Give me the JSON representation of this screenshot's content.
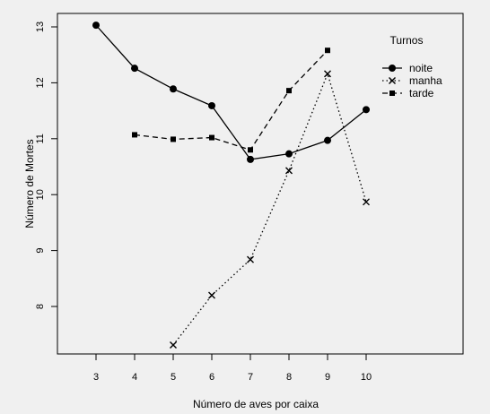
{
  "chart_data": {
    "type": "line",
    "xlabel": "Número de aves por caixa",
    "ylabel": "Número de Mortes",
    "xlim": [
      2.9,
      10.1
    ],
    "ylim": [
      7.2,
      13.1
    ],
    "x_ticks": [
      3,
      4,
      5,
      6,
      7,
      8,
      9,
      10
    ],
    "y_ticks": [
      8,
      9,
      10,
      11,
      12,
      13
    ],
    "legend": {
      "title": "Turnos",
      "position": "top-right"
    },
    "series": [
      {
        "name": "noite",
        "line": "solid",
        "marker": "circle",
        "x": [
          3,
          4,
          5,
          6,
          7,
          8,
          9,
          10
        ],
        "y": [
          13.03,
          12.26,
          11.89,
          11.59,
          10.63,
          10.73,
          10.97,
          11.52
        ]
      },
      {
        "name": "manha",
        "line": "dotted",
        "marker": "cross",
        "x": [
          5,
          6,
          7,
          8,
          9,
          10
        ],
        "y": [
          7.31,
          8.2,
          8.84,
          10.43,
          12.16,
          9.87
        ]
      },
      {
        "name": "tarde",
        "line": "dashed",
        "marker": "square",
        "x": [
          4,
          5,
          6,
          7,
          8,
          9
        ],
        "y": [
          11.07,
          10.99,
          11.02,
          10.8,
          11.86,
          12.58
        ]
      }
    ]
  }
}
